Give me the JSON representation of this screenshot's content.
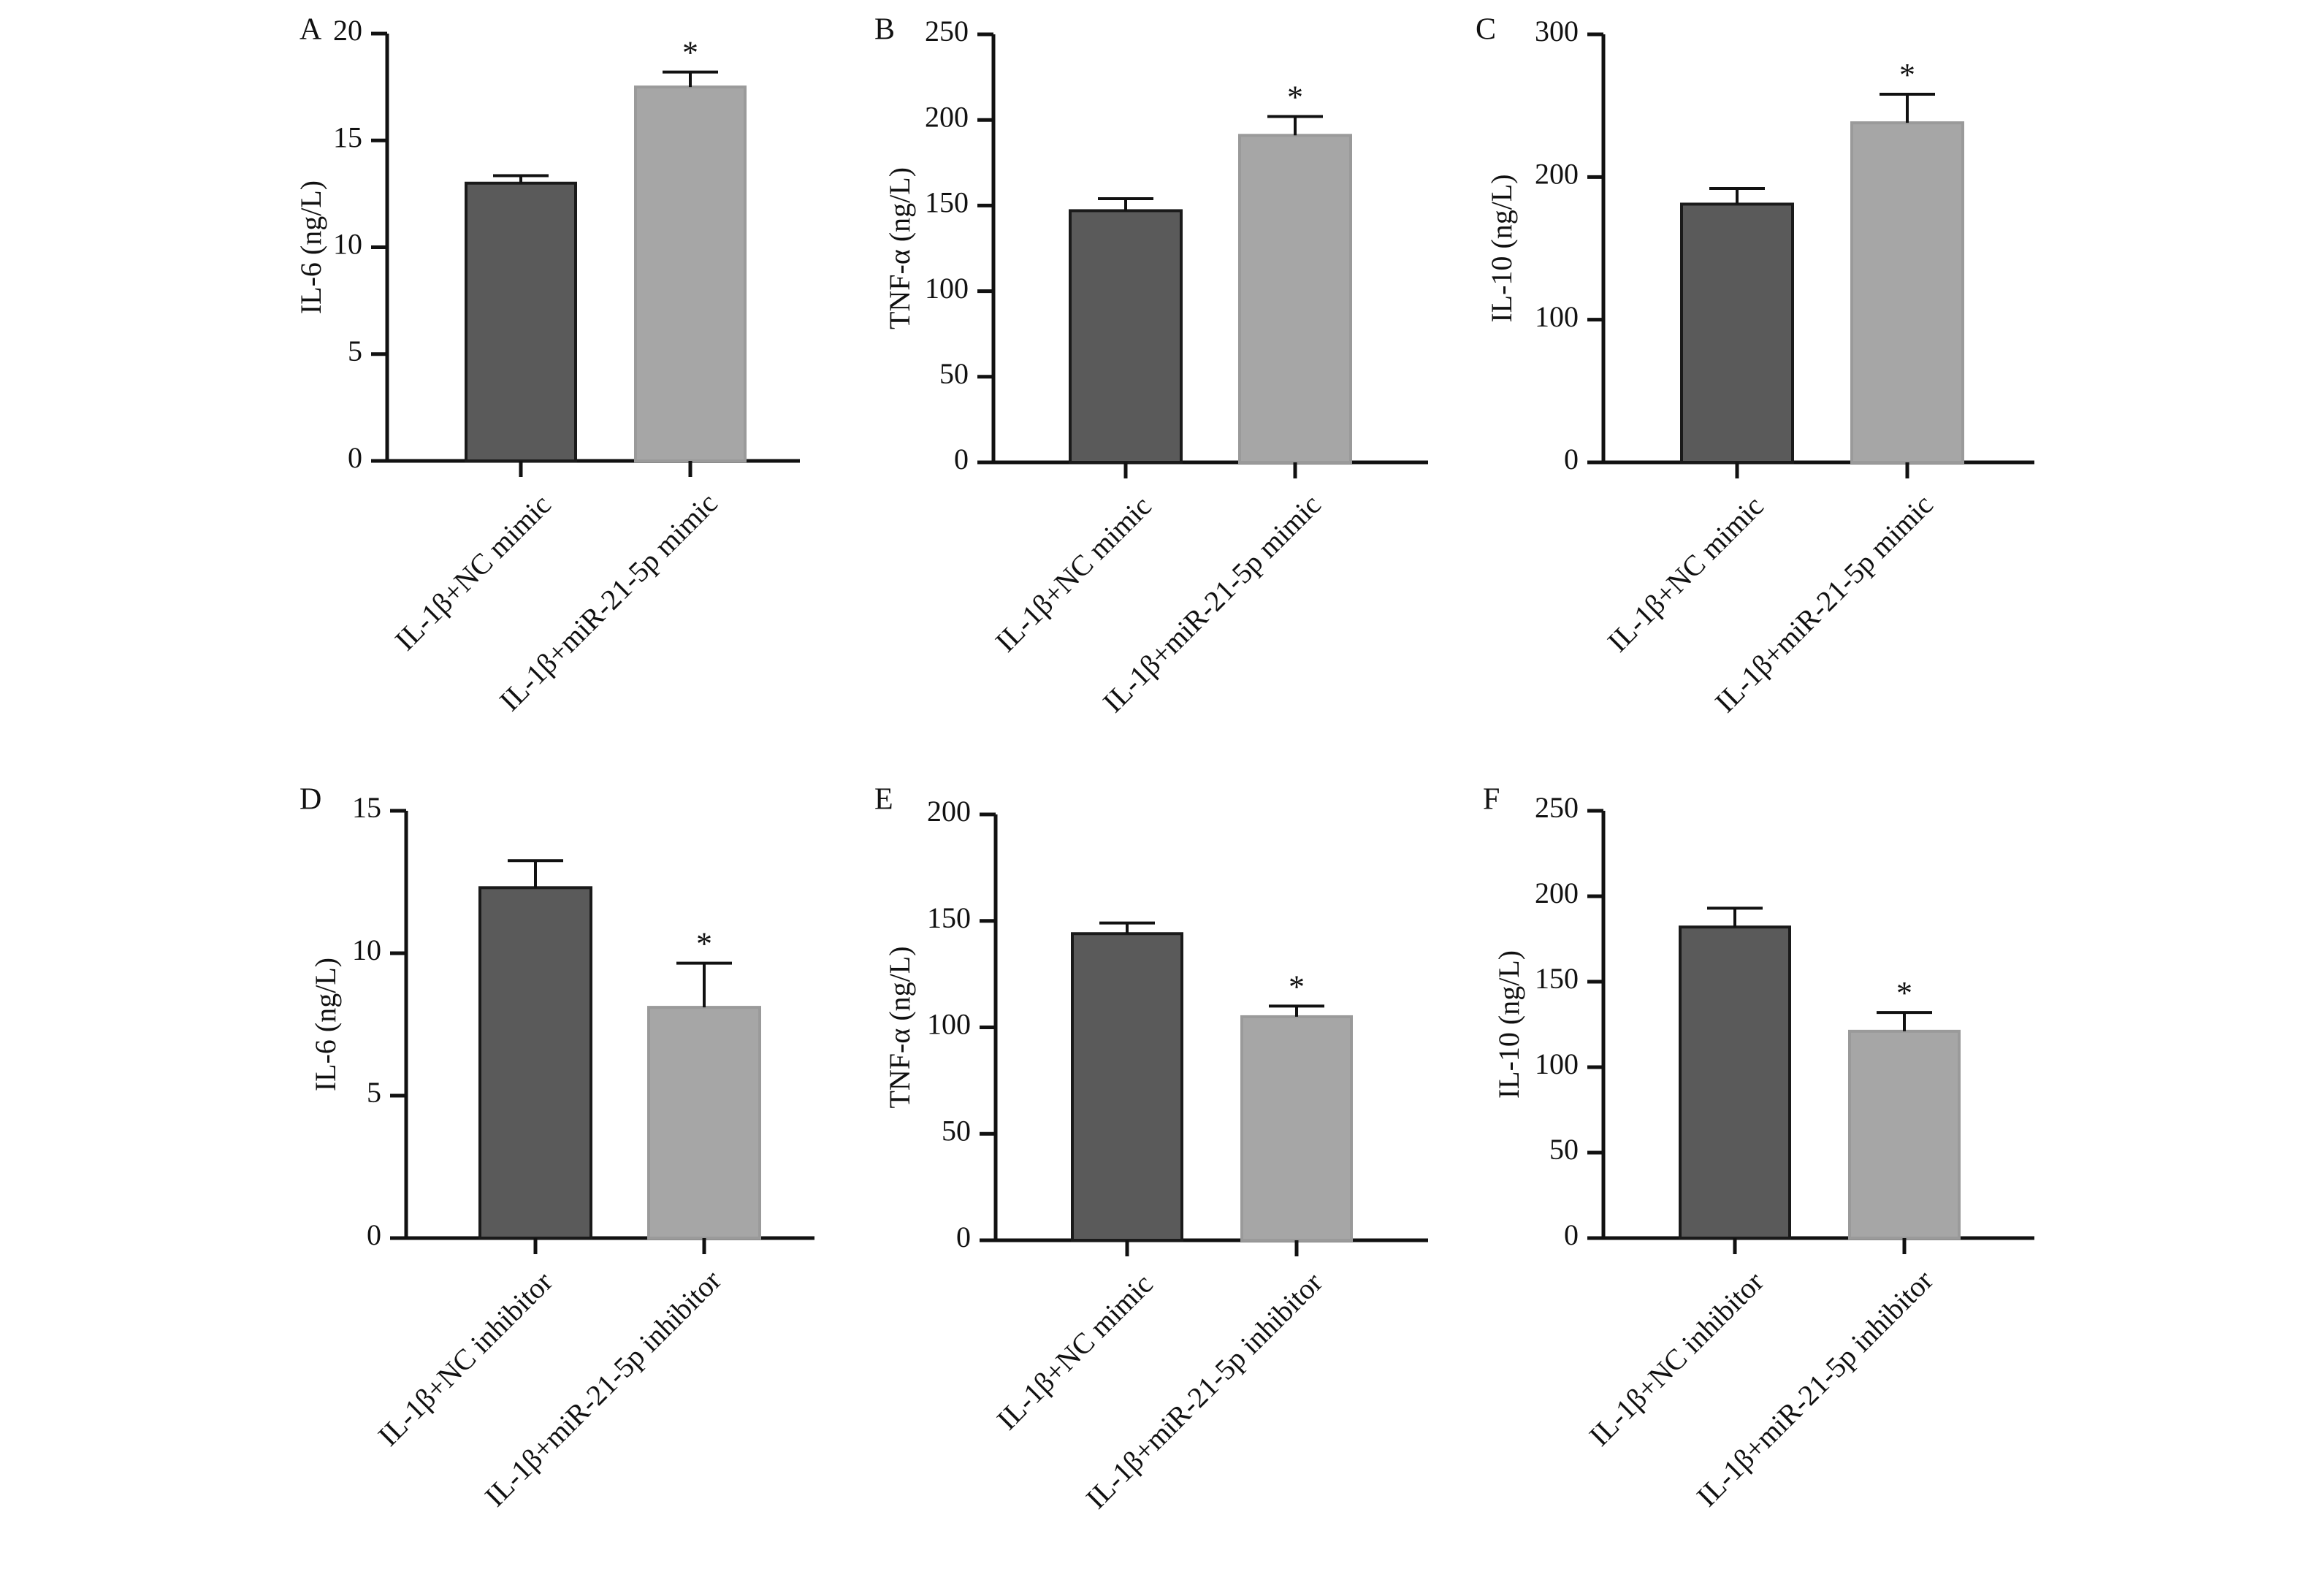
{
  "chart_data": [
    {
      "panel": "A",
      "type": "bar",
      "ylabel": "IL-6 (ng/L)",
      "categories": [
        "IL-1β+NC mimic",
        "IL-1β+miR-21-5p mimic"
      ],
      "values": [
        13.0,
        17.5
      ],
      "errors": [
        0.35,
        0.7
      ],
      "significance": [
        "",
        "*"
      ],
      "colors": [
        "#5a5a5a",
        "#a6a6a6"
      ],
      "ylim": [
        0,
        20
      ],
      "yticks": [
        0,
        5,
        10,
        15,
        20
      ]
    },
    {
      "panel": "B",
      "type": "bar",
      "ylabel": "TNF-α (ng/L)",
      "categories": [
        "IL-1β+NC mimic",
        "IL-1β+miR-21-5p mimic"
      ],
      "values": [
        147,
        191
      ],
      "errors": [
        7,
        11
      ],
      "significance": [
        "",
        "*"
      ],
      "colors": [
        "#5a5a5a",
        "#a6a6a6"
      ],
      "ylim": [
        0,
        250
      ],
      "yticks": [
        0,
        50,
        100,
        150,
        200,
        250
      ]
    },
    {
      "panel": "C",
      "type": "bar",
      "ylabel": "IL-10 (ng/L)",
      "categories": [
        "IL-1β+NC mimic",
        "IL-1β+miR-21-5p mimic"
      ],
      "values": [
        181,
        238
      ],
      "errors": [
        11,
        20
      ],
      "significance": [
        "",
        "*"
      ],
      "colors": [
        "#5a5a5a",
        "#a6a6a6"
      ],
      "ylim": [
        0,
        300
      ],
      "yticks": [
        0,
        100,
        200,
        300
      ]
    },
    {
      "panel": "D",
      "type": "bar",
      "ylabel": "IL-6 (ng/L)",
      "categories": [
        "IL-1β+NC inhibitor",
        "IL-1β+miR-21-5p inhibitor"
      ],
      "values": [
        12.3,
        8.1
      ],
      "errors": [
        0.95,
        1.55
      ],
      "significance": [
        "",
        "*"
      ],
      "colors": [
        "#5a5a5a",
        "#a6a6a6"
      ],
      "ylim": [
        0,
        15
      ],
      "yticks": [
        0,
        5,
        10,
        15
      ]
    },
    {
      "panel": "E",
      "type": "bar",
      "ylabel": "TNF-α (ng/L)",
      "categories": [
        "IL-1β+NC mimic",
        "IL-1β+miR-21-5p inhibitor"
      ],
      "values": [
        144,
        105
      ],
      "errors": [
        5,
        5
      ],
      "significance": [
        "",
        "*"
      ],
      "colors": [
        "#5a5a5a",
        "#a6a6a6"
      ],
      "ylim": [
        0,
        200
      ],
      "yticks": [
        0,
        50,
        100,
        150,
        200
      ]
    },
    {
      "panel": "F",
      "type": "bar",
      "ylabel": "IL-10 (ng/L)",
      "categories": [
        "IL-1β+NC inhibitor",
        "IL-1β+miR-21-5p inhibitor"
      ],
      "values": [
        182,
        121
      ],
      "errors": [
        11,
        11
      ],
      "significance": [
        "",
        "*"
      ],
      "colors": [
        "#5a5a5a",
        "#a6a6a6"
      ],
      "ylim": [
        0,
        250
      ],
      "yticks": [
        0,
        50,
        100,
        150,
        200,
        250
      ]
    }
  ]
}
